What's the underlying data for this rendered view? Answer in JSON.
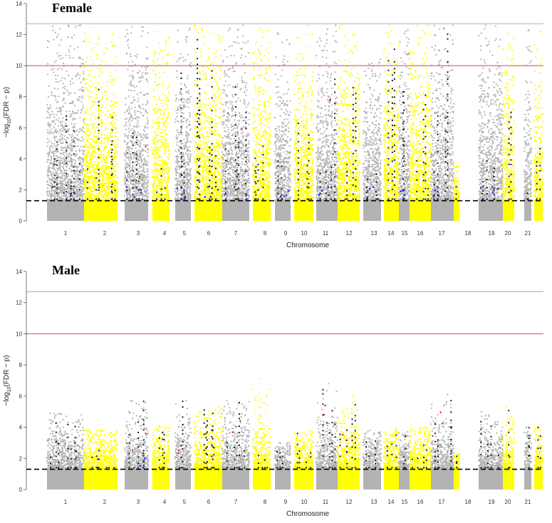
{
  "chart_data": [
    {
      "type": "scatter",
      "title": "Female",
      "xlabel": "Chromosome",
      "ylabel_main": "−log",
      "ylabel_sub": "10",
      "ylabel_rest": "(FDR − p)",
      "ylim": [
        0,
        14
      ],
      "yticks": [
        0,
        2,
        4,
        6,
        8,
        10,
        12,
        14
      ],
      "reference_lines": [
        {
          "name": "significance-line",
          "y": 1.3,
          "style": "dashed",
          "color": "#000000"
        },
        {
          "name": "red-threshold-line",
          "y": 10,
          "style": "solid",
          "color": "#c0504d"
        },
        {
          "name": "cap-line",
          "y": 12.7,
          "style": "solid",
          "color": "#b9a6c9"
        }
      ],
      "series": [
        {
          "chromosome": "1",
          "color": "#b3b3b3",
          "peak": 12.6,
          "black_max": 6.9,
          "blue": 1,
          "red": 0
        },
        {
          "chromosome": "2",
          "color": "#ffff00",
          "peak": 12.5,
          "black_max": 8.7,
          "blue": 0,
          "red": 0
        },
        {
          "chromosome": "3",
          "color": "#b3b3b3",
          "peak": 12.5,
          "black_max": 5.7,
          "blue": 1,
          "red": 1
        },
        {
          "chromosome": "4",
          "color": "#ffff00",
          "peak": 12.2,
          "black_max": 3.8,
          "blue": 0,
          "red": 0
        },
        {
          "chromosome": "5",
          "color": "#b3b3b3",
          "peak": 12.4,
          "black_max": 9.7,
          "blue": 1,
          "red": 0
        },
        {
          "chromosome": "6",
          "color": "#ffff00",
          "peak": 12.6,
          "black_max": 12.0,
          "blue": 1,
          "red": 0
        },
        {
          "chromosome": "7",
          "color": "#b3b3b3",
          "peak": 12.6,
          "black_max": 9.0,
          "blue": 1,
          "red": 1
        },
        {
          "chromosome": "8",
          "color": "#ffff00",
          "peak": 12.4,
          "black_max": 5.2,
          "blue": 0,
          "red": 0
        },
        {
          "chromosome": "9",
          "color": "#b3b3b3",
          "peak": 12.1,
          "black_max": 3.9,
          "blue": 1,
          "red": 0
        },
        {
          "chromosome": "10",
          "color": "#ffff00",
          "peak": 12.6,
          "black_max": 6.6,
          "blue": 0,
          "red": 0
        },
        {
          "chromosome": "11",
          "color": "#b3b3b3",
          "peak": 12.6,
          "black_max": 9.6,
          "blue": 1,
          "red": 1
        },
        {
          "chromosome": "12",
          "color": "#ffff00",
          "peak": 12.6,
          "black_max": 8.8,
          "blue": 0,
          "red": 0
        },
        {
          "chromosome": "13",
          "color": "#b3b3b3",
          "peak": 10.4,
          "black_max": 3.1,
          "blue": 1,
          "red": 0
        },
        {
          "chromosome": "14",
          "color": "#ffff00",
          "peak": 12.6,
          "black_max": 11.2,
          "blue": 0,
          "red": 0
        },
        {
          "chromosome": "15",
          "color": "#b3b3b3",
          "peak": 12.3,
          "black_max": 8.6,
          "blue": 1,
          "red": 0
        },
        {
          "chromosome": "16",
          "color": "#ffff00",
          "peak": 12.6,
          "black_max": 8.2,
          "blue": 0,
          "red": 0
        },
        {
          "chromosome": "17",
          "color": "#b3b3b3",
          "peak": 12.6,
          "black_max": 12.3,
          "blue": 1,
          "red": 0
        },
        {
          "chromosome": "18",
          "color": "#ffff00",
          "peak": 3.8,
          "black_max": 2.3,
          "blue": 0,
          "red": 0
        },
        {
          "chromosome": "19",
          "color": "#b3b3b3",
          "peak": 12.6,
          "black_max": 4.1,
          "blue": 1,
          "red": 0
        },
        {
          "chromosome": "20",
          "color": "#ffff00",
          "peak": 12.1,
          "black_max": 7.4,
          "blue": 0,
          "red": 0
        },
        {
          "chromosome": "21",
          "color": "#b3b3b3",
          "peak": 12.3,
          "black_max": 2.1,
          "blue": 0,
          "red": 0
        },
        {
          "chromosome": "22",
          "color": "#ffff00",
          "peak": 12.2,
          "black_max": 5.0,
          "blue": 0,
          "red": 0
        }
      ]
    },
    {
      "type": "scatter",
      "title": "Male",
      "xlabel": "Chromosome",
      "ylabel_main": "−log",
      "ylabel_sub": "10",
      "ylabel_rest": "(FDR − p)",
      "ylim": [
        0,
        14
      ],
      "yticks": [
        0,
        2,
        4,
        6,
        8,
        10,
        12,
        14
      ],
      "reference_lines": [
        {
          "name": "significance-line",
          "y": 1.3,
          "style": "dashed",
          "color": "#000000"
        },
        {
          "name": "red-threshold-line",
          "y": 10,
          "style": "solid",
          "color": "#c0504d"
        },
        {
          "name": "cap-line",
          "y": 12.7,
          "style": "solid",
          "color": "#aaaaaa"
        }
      ],
      "series": [
        {
          "chromosome": "1",
          "color": "#b3b3b3",
          "peak": 4.9,
          "black_max": 4.9,
          "blue": 0,
          "red": 0
        },
        {
          "chromosome": "2",
          "color": "#ffff00",
          "peak": 3.8,
          "black_max": 3.0,
          "blue": 0,
          "red": 0
        },
        {
          "chromosome": "3",
          "color": "#b3b3b3",
          "peak": 5.7,
          "black_max": 5.7,
          "blue": 1,
          "red": 1
        },
        {
          "chromosome": "4",
          "color": "#ffff00",
          "peak": 4.1,
          "black_max": 3.7,
          "blue": 0,
          "red": 0
        },
        {
          "chromosome": "5",
          "color": "#b3b3b3",
          "peak": 5.7,
          "black_max": 5.7,
          "blue": 0,
          "red": 1
        },
        {
          "chromosome": "6",
          "color": "#ffff00",
          "peak": 5.3,
          "black_max": 5.3,
          "blue": 0,
          "red": 0
        },
        {
          "chromosome": "7",
          "color": "#b3b3b3",
          "peak": 5.7,
          "black_max": 5.7,
          "blue": 0,
          "red": 1
        },
        {
          "chromosome": "8",
          "color": "#ffff00",
          "peak": 7.1,
          "black_max": 2.7,
          "blue": 0,
          "red": 0
        },
        {
          "chromosome": "9",
          "color": "#b3b3b3",
          "peak": 3.0,
          "black_max": 3.0,
          "blue": 0,
          "red": 0
        },
        {
          "chromosome": "10",
          "color": "#ffff00",
          "peak": 3.8,
          "black_max": 3.8,
          "blue": 0,
          "red": 0
        },
        {
          "chromosome": "11",
          "color": "#b3b3b3",
          "peak": 6.8,
          "black_max": 6.8,
          "blue": 0,
          "red": 1
        },
        {
          "chromosome": "12",
          "color": "#ffff00",
          "peak": 6.1,
          "black_max": 6.1,
          "blue": 0,
          "red": 1
        },
        {
          "chromosome": "13",
          "color": "#b3b3b3",
          "peak": 3.8,
          "black_max": 3.8,
          "blue": 0,
          "red": 0
        },
        {
          "chromosome": "14",
          "color": "#ffff00",
          "peak": 3.9,
          "black_max": 3.9,
          "blue": 0,
          "red": 0
        },
        {
          "chromosome": "15",
          "color": "#b3b3b3",
          "peak": 3.7,
          "black_max": 3.7,
          "blue": 0,
          "red": 0
        },
        {
          "chromosome": "16",
          "color": "#ffff00",
          "peak": 4.0,
          "black_max": 3.2,
          "blue": 0,
          "red": 0
        },
        {
          "chromosome": "17",
          "color": "#b3b3b3",
          "peak": 6.1,
          "black_max": 6.1,
          "blue": 0,
          "red": 1
        },
        {
          "chromosome": "18",
          "color": "#ffff00",
          "peak": 2.3,
          "black_max": 2.3,
          "blue": 0,
          "red": 0
        },
        {
          "chromosome": "19",
          "color": "#b3b3b3",
          "peak": 5.0,
          "black_max": 5.0,
          "blue": 0,
          "red": 0
        },
        {
          "chromosome": "20",
          "color": "#ffff00",
          "peak": 5.3,
          "black_max": 5.3,
          "blue": 0,
          "red": 0
        },
        {
          "chromosome": "21",
          "color": "#b3b3b3",
          "peak": 4.0,
          "black_max": 4.0,
          "blue": 0,
          "red": 0
        },
        {
          "chromosome": "22",
          "color": "#ffff00",
          "peak": 4.2,
          "black_max": 4.2,
          "blue": 0,
          "red": 0
        }
      ]
    }
  ],
  "chromosome_tick_labels": [
    "1",
    "2",
    "3",
    "4",
    "5",
    "6",
    "7",
    "8",
    "9",
    "10",
    "11",
    "12",
    "13",
    "14",
    "15",
    "16",
    "17",
    "18",
    "19",
    "20",
    "21"
  ]
}
